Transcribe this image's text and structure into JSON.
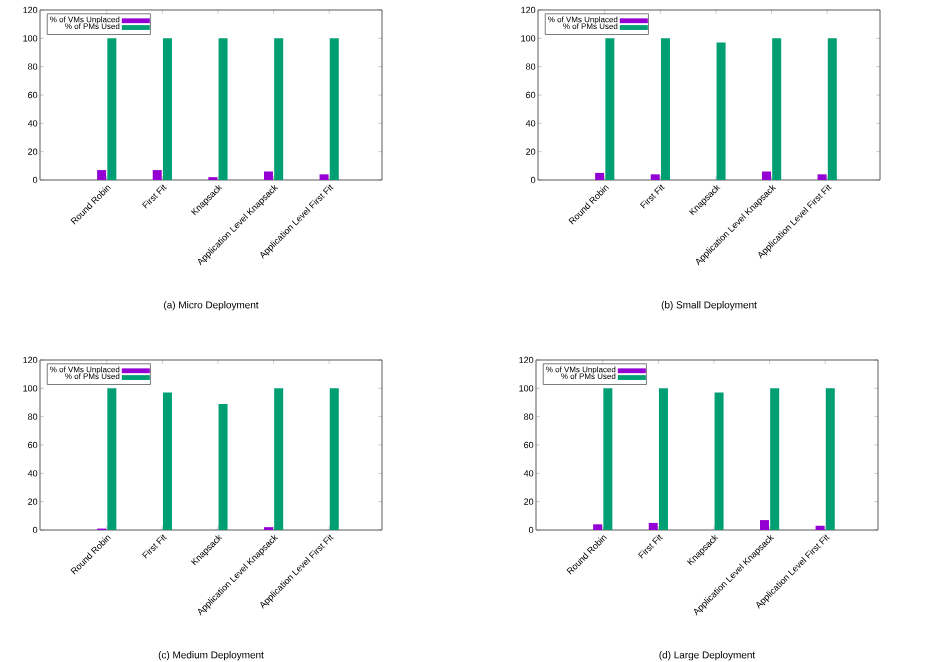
{
  "chart_data": [
    {
      "type": "bar",
      "title": "(a) Micro Deployment",
      "categories": [
        "Round Robin",
        "First Fit",
        "Knapsack",
        "Application Level Knapsack",
        "Application Level First Fit"
      ],
      "series": [
        {
          "name": "% of VMs Unplaced",
          "color": "#9400d3",
          "values": [
            7,
            7,
            2,
            6,
            4
          ]
        },
        {
          "name": "% of PMs Used",
          "color": "#009e73",
          "values": [
            100,
            100,
            100,
            100,
            100
          ]
        }
      ],
      "ylim": [
        0,
        120
      ],
      "yticks": [
        0,
        20,
        40,
        60,
        80,
        100,
        120
      ],
      "legend": "top left"
    },
    {
      "type": "bar",
      "title": "(b) Small Deployment",
      "categories": [
        "Round Robin",
        "First Fit",
        "Knapsack",
        "Application Level Knapsack",
        "Application Level First Fit"
      ],
      "series": [
        {
          "name": "% of VMs Unplaced",
          "color": "#9400d3",
          "values": [
            5,
            4,
            0,
            6,
            4
          ]
        },
        {
          "name": "% of PMs Used",
          "color": "#009e73",
          "values": [
            100,
            100,
            97,
            100,
            100
          ]
        }
      ],
      "ylim": [
        0,
        120
      ],
      "yticks": [
        0,
        20,
        40,
        60,
        80,
        100,
        120
      ],
      "legend": "top left"
    },
    {
      "type": "bar",
      "title": "(c) Medium Deployment",
      "categories": [
        "Round Robin",
        "First Fit",
        "Knapsack",
        "Application Level Knapsack",
        "Application Level First Fit"
      ],
      "series": [
        {
          "name": "% of VMs Unplaced",
          "color": "#9400d3",
          "values": [
            1,
            0,
            0,
            2,
            0
          ]
        },
        {
          "name": "% of PMs Used",
          "color": "#009e73",
          "values": [
            100,
            97,
            89,
            100,
            100
          ]
        }
      ],
      "ylim": [
        0,
        120
      ],
      "yticks": [
        0,
        20,
        40,
        60,
        80,
        100,
        120
      ],
      "legend": "top left"
    },
    {
      "type": "bar",
      "title": "(d) Large Deployment",
      "categories": [
        "Round Robin",
        "First Fit",
        "Knapsack",
        "Application Level Knapsack",
        "Application Level First Fit"
      ],
      "series": [
        {
          "name": "% of VMs Unplaced",
          "color": "#9400d3",
          "values": [
            4,
            5,
            0,
            7,
            3
          ]
        },
        {
          "name": "% of PMs Used",
          "color": "#009e73",
          "values": [
            100,
            100,
            97,
            100,
            100
          ]
        }
      ],
      "ylim": [
        0,
        120
      ],
      "yticks": [
        0,
        20,
        40,
        60,
        80,
        100,
        120
      ],
      "legend": "top left"
    }
  ]
}
